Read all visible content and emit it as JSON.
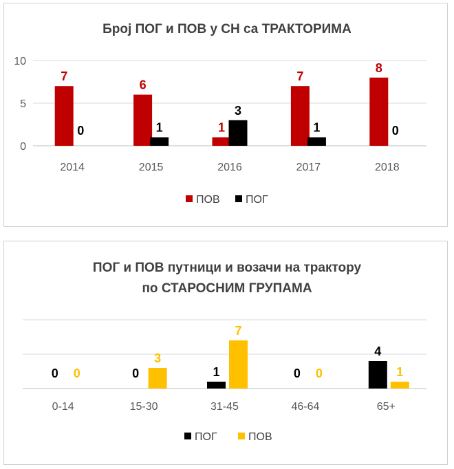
{
  "chart_data": [
    {
      "type": "bar",
      "title": "Број ПОГ и ПОВ у СН са ТРАКТОРИМА",
      "categories": [
        "2014",
        "2015",
        "2016",
        "2017",
        "2018"
      ],
      "series": [
        {
          "name": "ПОВ",
          "values": [
            7,
            6,
            1,
            7,
            8
          ],
          "color": "#c00000",
          "label_color": "#c00000"
        },
        {
          "name": "ПОГ",
          "values": [
            0,
            1,
            3,
            1,
            0
          ],
          "color": "#000000",
          "label_color": "#000000"
        }
      ],
      "ylim": [
        0,
        10
      ],
      "yticks": [
        "0",
        "5",
        "10"
      ],
      "grid": true,
      "legend": "bottom"
    },
    {
      "type": "bar",
      "title": [
        "ПОГ  и ПОВ путници и возачи на трактору",
        "по СТАРОСНИМ ГРУПАМА"
      ],
      "categories": [
        "0-14",
        "15-30",
        "31-45",
        "46-64",
        "65+"
      ],
      "series": [
        {
          "name": "ПОГ",
          "values": [
            0,
            0,
            1,
            0,
            4
          ],
          "color": "#000000",
          "label_color": "#000000"
        },
        {
          "name": "ПОВ",
          "values": [
            0,
            3,
            7,
            0,
            1
          ],
          "color": "#ffc000",
          "label_color": "#ffc000"
        }
      ],
      "ylim": [
        0,
        10
      ],
      "grid": true,
      "legend": "bottom"
    }
  ]
}
